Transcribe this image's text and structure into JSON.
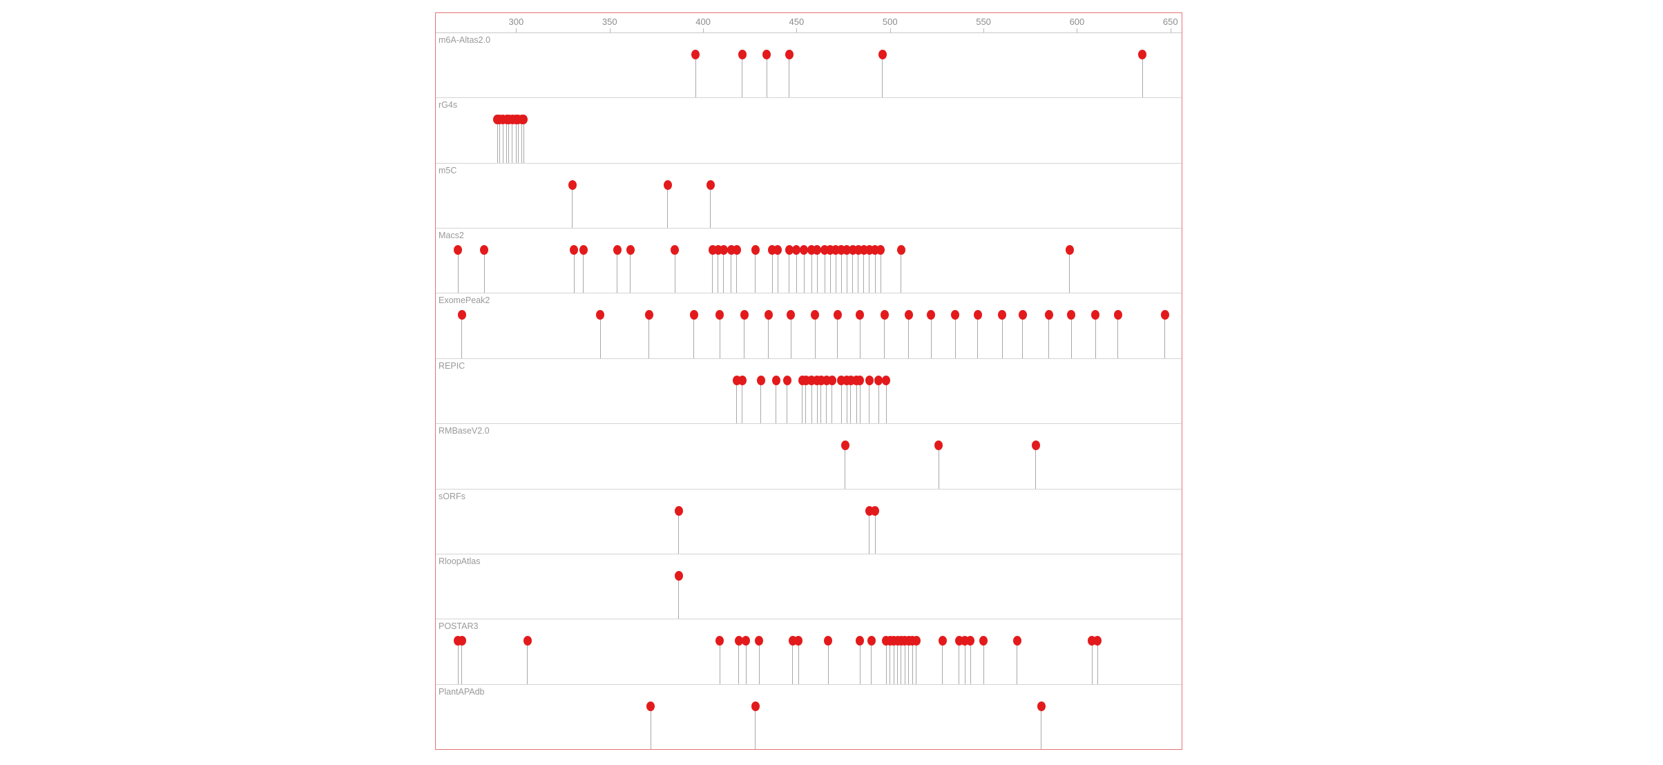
{
  "chart": {
    "colors": {
      "frame_border": "#e57373",
      "dot": "#e31a1c",
      "stem": "#a8a8a8",
      "track_separator": "#d4d4d4",
      "track_label_text": "#999999",
      "tick_text": "#8c8c8c",
      "background": "#ffffff"
    }
  },
  "chart_data": {
    "type": "scatter",
    "style": "lollipop-tracks",
    "title": "",
    "xlabel": "",
    "ylabel": "",
    "xlim": [
      257,
      656
    ],
    "x_ticks": [
      300,
      350,
      400,
      450,
      500,
      550,
      600,
      650
    ],
    "grid": false,
    "legend": false,
    "tracks": [
      {
        "name": "m6A-Altas2.0",
        "x": [
          396,
          421,
          434,
          446,
          496,
          635
        ]
      },
      {
        "name": "rG4s",
        "x": [
          290,
          291,
          293,
          295,
          296,
          298,
          300,
          301,
          303,
          304
        ]
      },
      {
        "name": "m5C",
        "x": [
          330,
          381,
          404
        ]
      },
      {
        "name": "Macs2",
        "x": [
          269,
          283,
          331,
          336,
          354,
          361,
          385,
          405,
          408,
          411,
          415,
          418,
          428,
          437,
          440,
          446,
          450,
          454,
          458,
          461,
          465,
          468,
          471,
          474,
          477,
          480,
          483,
          486,
          489,
          492,
          495,
          506,
          596
        ]
      },
      {
        "name": "ExomePeak2",
        "x": [
          271,
          345,
          371,
          395,
          409,
          422,
          435,
          447,
          460,
          472,
          484,
          497,
          510,
          522,
          535,
          547,
          560,
          571,
          585,
          597,
          610,
          622,
          647
        ]
      },
      {
        "name": "REPIC",
        "x": [
          418,
          421,
          431,
          439,
          445,
          453,
          455,
          458,
          461,
          463,
          466,
          469,
          474,
          477,
          479,
          482,
          484,
          489,
          494,
          498
        ]
      },
      {
        "name": "RMBaseV2.0",
        "x": [
          476,
          526,
          578
        ]
      },
      {
        "name": "sORFs",
        "x": [
          387,
          489,
          492
        ]
      },
      {
        "name": "RloopAtlas",
        "x": [
          387
        ]
      },
      {
        "name": "POSTAR3",
        "x": [
          269,
          271,
          306,
          409,
          419,
          423,
          430,
          448,
          451,
          467,
          484,
          490,
          498,
          500,
          502,
          504,
          506,
          508,
          510,
          512,
          514,
          528,
          537,
          540,
          543,
          550,
          568,
          608,
          611
        ]
      },
      {
        "name": "PlantAPAdb",
        "x": [
          372,
          428,
          581
        ]
      }
    ]
  }
}
